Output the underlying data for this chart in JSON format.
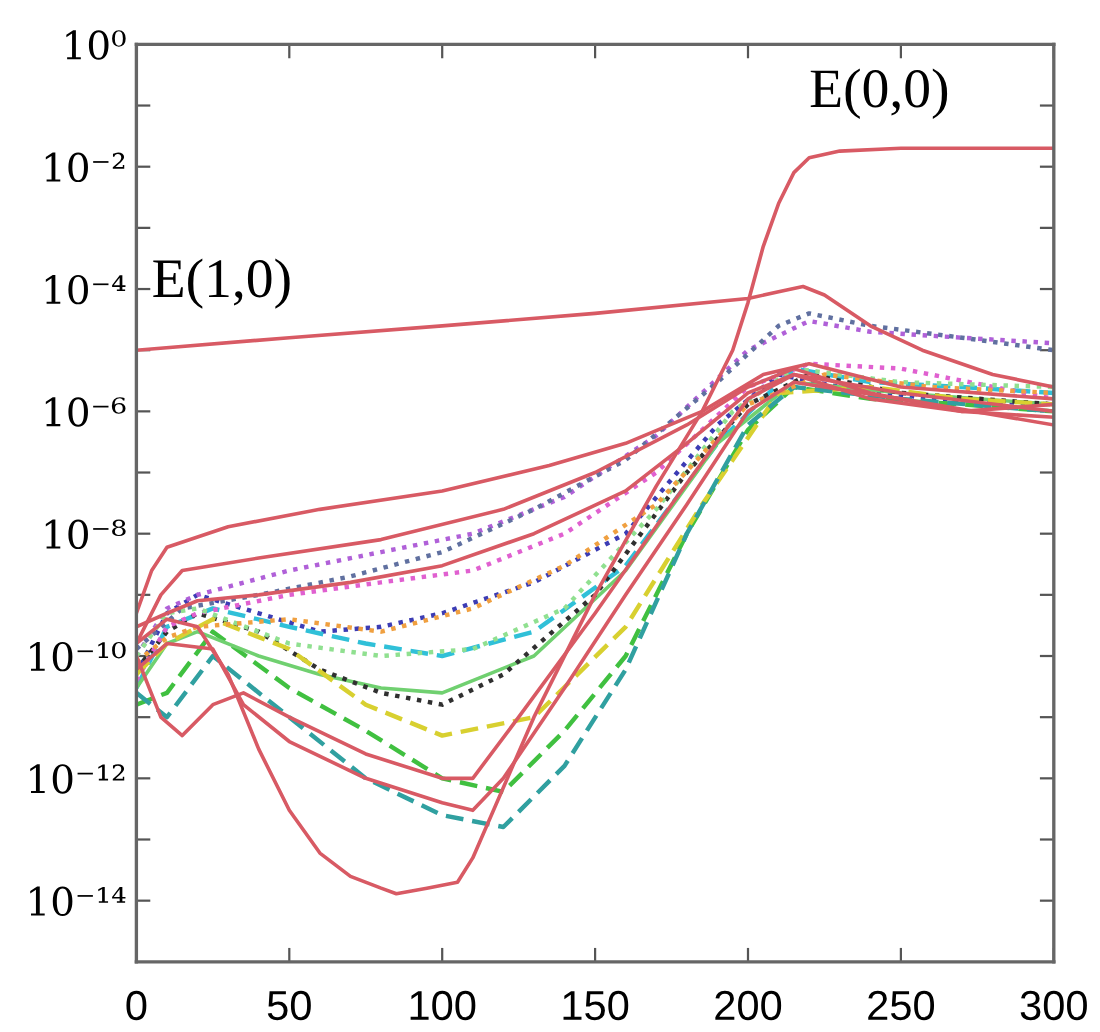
{
  "chart_data": {
    "type": "line",
    "log": "y",
    "xlim": [
      0,
      300
    ],
    "xticks": [
      0,
      50,
      100,
      150,
      200,
      250,
      300
    ],
    "ylim": [
      1e-15,
      1
    ],
    "yticks": [
      {
        "value": 1,
        "label": "10⁰"
      },
      {
        "value": 0.1,
        "label": null
      },
      {
        "value": 0.01,
        "label": "10⁻²"
      },
      {
        "value": 0.001,
        "label": null
      },
      {
        "value": 0.0001,
        "label": "10⁻⁴"
      },
      {
        "value": 1e-05,
        "label": null
      },
      {
        "value": 1e-06,
        "label": "10⁻⁶"
      },
      {
        "value": 1e-07,
        "label": null
      },
      {
        "value": 1e-08,
        "label": "10⁻⁸"
      },
      {
        "value": 1e-09,
        "label": null
      },
      {
        "value": 1e-10,
        "label": "10⁻¹⁰"
      },
      {
        "value": 1e-11,
        "label": null
      },
      {
        "value": 1e-12,
        "label": "10⁻¹²"
      },
      {
        "value": 1e-13,
        "label": null
      },
      {
        "value": 1e-14,
        "label": "10⁻¹⁴"
      }
    ],
    "annotations": [
      {
        "text": "E(0,0)",
        "x": 220,
        "y": 0.014
      },
      {
        "text": "E(1,0)",
        "x": 5,
        "y": 1.1e-05
      }
    ],
    "series": [
      {
        "color": "#3c3cb4",
        "line_style": "dotted",
        "x": [
          0,
          10,
          20,
          40,
          60,
          80,
          100,
          130,
          160,
          190,
          210,
          230,
          260,
          300
        ],
        "values": [
          5e-11,
          5e-10,
          1e-09,
          5e-10,
          2.5e-10,
          3e-10,
          5e-10,
          1.6e-09,
          1e-08,
          6e-07,
          4e-06,
          2.5e-06,
          1.6e-06,
          1.3e-06
        ]
      },
      {
        "color": "#b060d8",
        "line_style": "dotted",
        "x": [
          0,
          10,
          20,
          50,
          80,
          110,
          140,
          170,
          200,
          220,
          240,
          270,
          300
        ],
        "values": [
          1e-10,
          6e-10,
          1e-09,
          2.5e-09,
          5e-09,
          1e-08,
          4e-08,
          4e-07,
          1e-05,
          3e-05,
          2e-05,
          1.6e-05,
          1.3e-05
        ]
      },
      {
        "color": "#30c0d8",
        "line_style": "dashed",
        "x": [
          0,
          10,
          25,
          50,
          75,
          100,
          130,
          160,
          190,
          215,
          240,
          270,
          300
        ],
        "values": [
          3e-11,
          3e-10,
          6e-10,
          3e-10,
          1.6e-10,
          1e-10,
          2.5e-10,
          3e-09,
          3e-07,
          5e-06,
          3e-06,
          2.5e-06,
          2e-06
        ]
      },
      {
        "color": "#40c040",
        "line_style": "dashed",
        "x": [
          0,
          10,
          25,
          50,
          75,
          100,
          120,
          140,
          160,
          180,
          200,
          215,
          240,
          270,
          300
        ],
        "values": [
          1.6e-11,
          2.5e-11,
          2.5e-10,
          3e-11,
          6e-12,
          1e-12,
          6e-13,
          6e-12,
          1e-10,
          1e-08,
          5e-07,
          2.5e-06,
          1.6e-06,
          1.3e-06,
          1e-06
        ]
      },
      {
        "color": "#70d070",
        "line_style": "solid",
        "x": [
          0,
          10,
          20,
          40,
          60,
          80,
          100,
          130,
          160,
          190,
          215,
          250,
          300
        ],
        "values": [
          3e-11,
          1.6e-10,
          2.5e-10,
          1e-10,
          5e-11,
          3e-11,
          2.5e-11,
          1e-10,
          2.5e-09,
          3e-07,
          3e-06,
          2e-06,
          1.3e-06
        ]
      },
      {
        "color": "#303030",
        "line_style": "dotted",
        "x": [
          0,
          10,
          20,
          40,
          60,
          80,
          100,
          120,
          150,
          180,
          200,
          220,
          250,
          300
        ],
        "values": [
          6e-11,
          2.5e-10,
          5e-10,
          2.5e-10,
          6e-11,
          2.5e-11,
          1.6e-11,
          5e-11,
          1e-09,
          1e-07,
          1.3e-06,
          4e-06,
          2e-06,
          1.3e-06
        ]
      },
      {
        "color": "#e060d0",
        "line_style": "dotted",
        "x": [
          0,
          10,
          20,
          50,
          80,
          110,
          140,
          170,
          200,
          220,
          250,
          300
        ],
        "values": [
          4e-11,
          3e-10,
          5e-10,
          1e-09,
          1.6e-09,
          2.5e-09,
          1e-08,
          1e-07,
          2.5e-06,
          6e-06,
          5e-06,
          1.6e-06
        ]
      },
      {
        "color": "#d8d030",
        "line_style": "dashed",
        "x": [
          0,
          10,
          25,
          50,
          75,
          100,
          130,
          160,
          185,
          210,
          240,
          270,
          300
        ],
        "values": [
          5e-11,
          1.6e-10,
          4e-10,
          1.3e-10,
          1.6e-11,
          5e-12,
          1e-11,
          3e-10,
          3e-08,
          2e-06,
          2.5e-06,
          1.6e-06,
          1.3e-06
        ]
      },
      {
        "color": "#6070a0",
        "line_style": "dotted",
        "x": [
          0,
          15,
          40,
          70,
          100,
          130,
          160,
          190,
          210,
          220,
          240,
          270,
          300
        ],
        "values": [
          1.3e-10,
          6e-10,
          1e-09,
          2e-09,
          5e-09,
          2.5e-08,
          1.6e-07,
          3e-06,
          2.5e-05,
          4e-05,
          2.5e-05,
          1.6e-05,
          1e-05
        ]
      },
      {
        "color": "#30a0a0",
        "line_style": "dashed",
        "x": [
          0,
          10,
          25,
          50,
          75,
          100,
          120,
          140,
          160,
          180,
          200,
          215,
          250,
          300
        ],
        "values": [
          2.5e-11,
          1e-11,
          1e-10,
          1e-11,
          1e-12,
          2.5e-13,
          1.6e-13,
          1.6e-12,
          6e-11,
          1e-08,
          6e-07,
          2.5e-06,
          1.6e-06,
          1e-06
        ]
      },
      {
        "color": "#90e090",
        "line_style": "dotted",
        "x": [
          0,
          10,
          20,
          50,
          80,
          110,
          140,
          170,
          195,
          215,
          250,
          300
        ],
        "values": [
          1e-10,
          5e-10,
          6e-10,
          1.6e-10,
          1e-10,
          1.3e-10,
          6e-10,
          2.5e-08,
          1e-06,
          5e-06,
          3e-06,
          2.5e-06
        ]
      },
      {
        "color": "#f0a040",
        "line_style": "dotted",
        "x": [
          0,
          10,
          20,
          50,
          80,
          110,
          140,
          170,
          200,
          225,
          260,
          300
        ],
        "values": [
          8e-11,
          2e-10,
          3e-10,
          4e-10,
          2.5e-10,
          6e-10,
          3e-09,
          3e-08,
          1.3e-06,
          4e-06,
          2.5e-06,
          2e-06
        ]
      },
      {
        "color": "#d85a64",
        "line_style": "solid",
        "x": [
          0,
          5,
          10,
          30,
          60,
          100,
          135,
          160,
          185,
          205,
          220,
          250,
          300
        ],
        "values": [
          5e-10,
          2.5e-09,
          6e-09,
          1.3e-08,
          2.5e-08,
          5e-08,
          1.3e-07,
          3e-07,
          1e-06,
          4e-06,
          6e-06,
          2.5e-06,
          1.6e-06
        ]
      },
      {
        "color": "#d85a64",
        "line_style": "solid",
        "x": [
          0,
          8,
          15,
          40,
          80,
          120,
          150,
          180,
          200,
          215,
          240,
          270,
          300
        ],
        "values": [
          1.6e-10,
          1e-09,
          2.5e-09,
          4e-09,
          8e-09,
          2.5e-08,
          1e-07,
          6e-07,
          2.5e-06,
          5e-06,
          2e-06,
          1e-06,
          1.3e-06
        ]
      },
      {
        "color": "#d85a64",
        "line_style": "solid",
        "x": [
          0,
          10,
          20,
          40,
          70,
          100,
          130,
          160,
          180,
          200,
          215,
          240,
          270,
          300
        ],
        "values": [
          3e-10,
          5e-10,
          8e-10,
          1e-09,
          1.6e-09,
          3e-09,
          1e-08,
          5e-08,
          3e-07,
          2e-06,
          4e-06,
          1.6e-06,
          1e-06,
          8e-07
        ]
      },
      {
        "color": "#d85a64",
        "line_style": "solid",
        "x": [
          0,
          8,
          15,
          25,
          35,
          50,
          75,
          100,
          110,
          125,
          150,
          175,
          200,
          215,
          250,
          300
        ],
        "values": [
          1e-10,
          1e-11,
          5e-12,
          1.6e-11,
          2.5e-11,
          1e-11,
          2.5e-12,
          1e-12,
          1e-12,
          1e-11,
          5e-10,
          3e-08,
          1.6e-06,
          4e-06,
          2e-06,
          1e-06
        ]
      },
      {
        "color": "#d85a64",
        "line_style": "solid",
        "x": [
          0,
          10,
          25,
          35,
          50,
          75,
          100,
          110,
          120,
          140,
          160,
          180,
          200,
          215,
          250,
          300
        ],
        "values": [
          6e-11,
          1.6e-10,
          1.3e-10,
          1.6e-11,
          4e-12,
          1e-12,
          4e-13,
          3e-13,
          1e-12,
          3e-11,
          1e-09,
          3e-08,
          1e-06,
          3e-06,
          1.6e-06,
          6e-07
        ]
      },
      {
        "color": "#d85a64",
        "line_style": "solid",
        "x": [
          0,
          50,
          100,
          150,
          200,
          210,
          218,
          225,
          240,
          257,
          280,
          300
        ],
        "values": [
          1e-05,
          1.6e-05,
          2.5e-05,
          4e-05,
          7e-05,
          9e-05,
          0.00011,
          8e-05,
          2.5e-05,
          1e-05,
          4e-06,
          2.5e-06
        ]
      },
      {
        "color": "#d85a64",
        "line_style": "solid",
        "x": [
          0,
          10,
          20,
          30,
          40,
          50,
          60,
          70,
          80,
          85,
          95,
          105,
          110,
          130,
          150,
          170,
          185,
          195,
          200,
          205,
          210,
          215,
          220,
          230,
          250,
          300
        ],
        "values": [
          1.6e-10,
          4e-10,
          3e-10,
          5e-11,
          3e-12,
          3e-13,
          6e-14,
          2.5e-14,
          1.6e-14,
          1.3e-14,
          1.6e-14,
          2e-14,
          5e-14,
          1e-11,
          1e-09,
          6e-08,
          1e-06,
          1e-05,
          6e-05,
          0.0005,
          0.0025,
          0.008,
          0.014,
          0.018,
          0.02,
          0.02
        ]
      }
    ]
  }
}
